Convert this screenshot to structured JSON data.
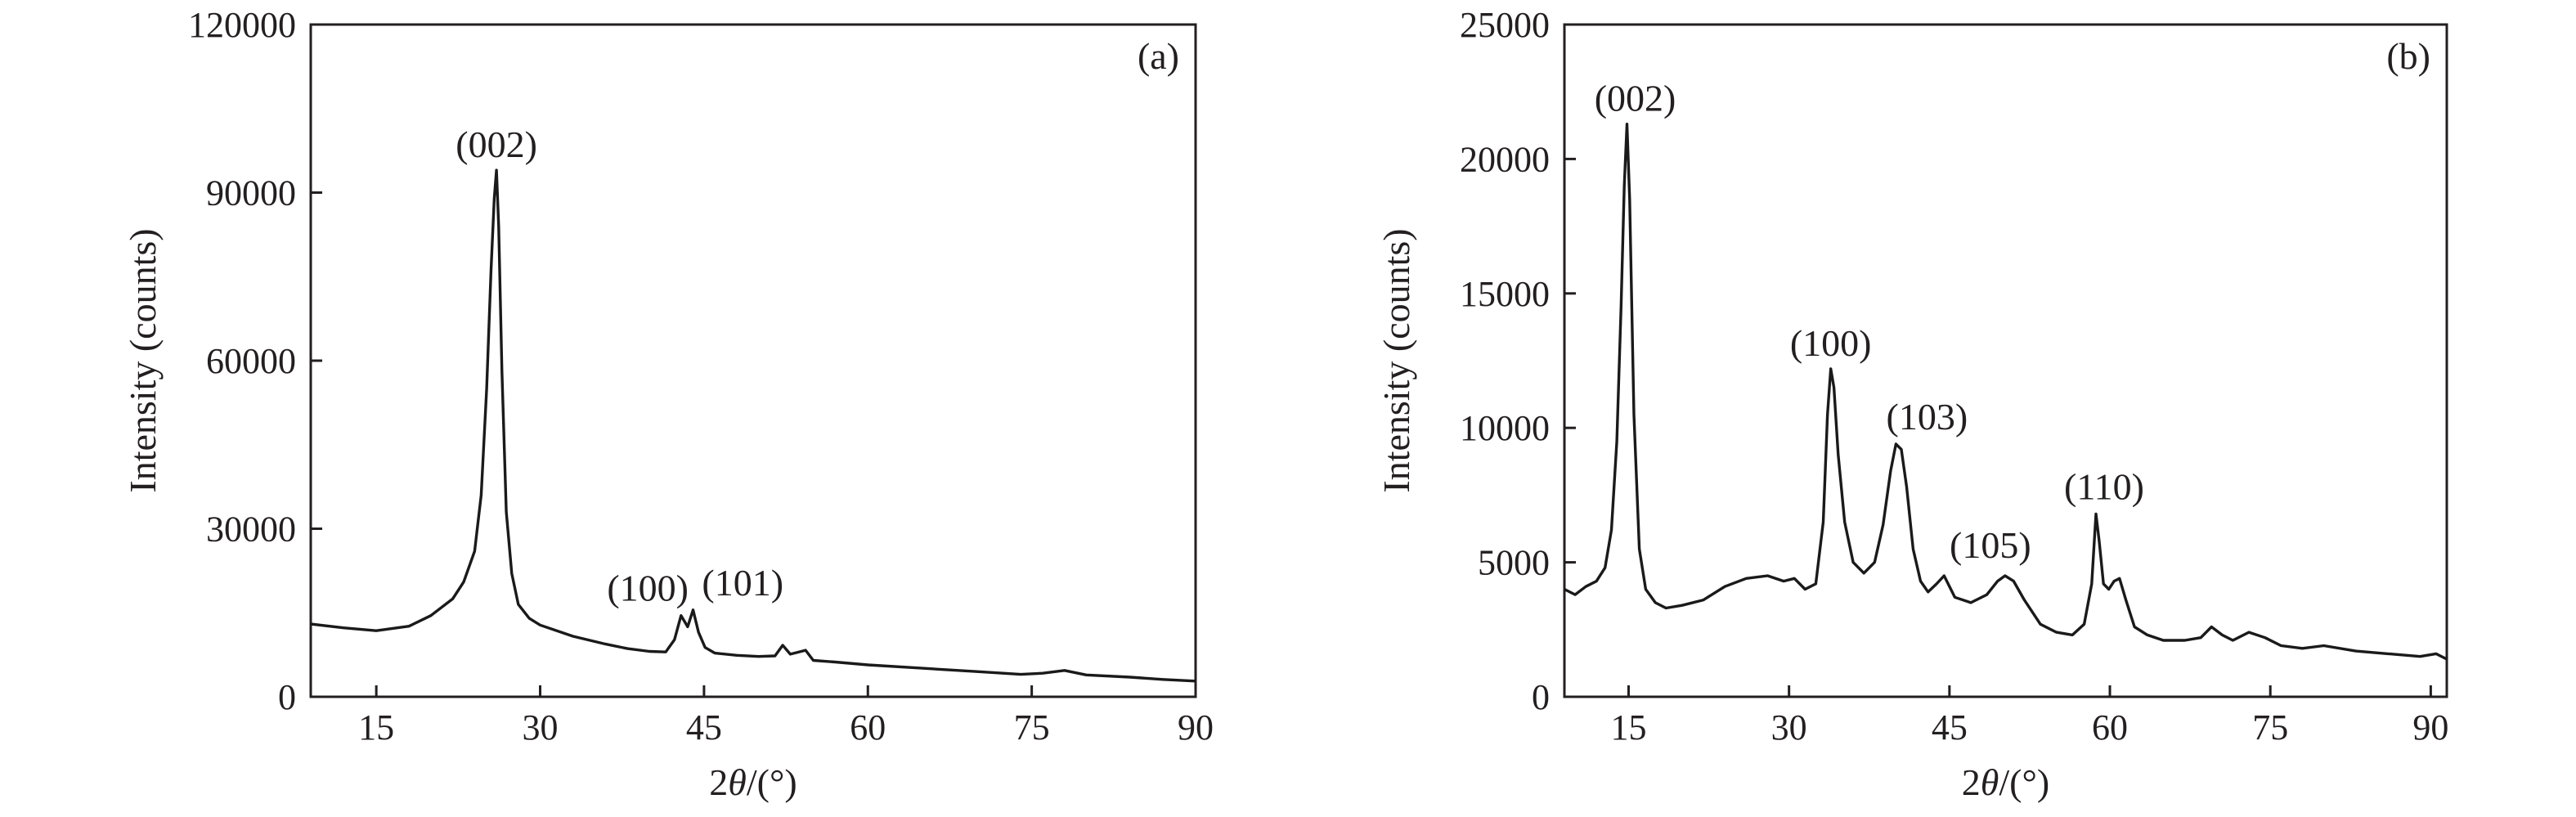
{
  "chart_data": [
    {
      "type": "line",
      "panel_label": "(a)",
      "xlabel_parts": [
        "2",
        "θ",
        "/(°)"
      ],
      "ylabel": "Intensity (counts)",
      "xlim": [
        9,
        90
      ],
      "ylim": [
        0,
        120000
      ],
      "xticks": [
        15,
        30,
        45,
        60,
        75,
        90
      ],
      "yticks": [
        0,
        30000,
        60000,
        90000,
        120000
      ],
      "grid": false,
      "line_color": "#1a1a1a",
      "series": [
        {
          "x": [
            9,
            12,
            15,
            18,
            20,
            22,
            23,
            24,
            24.6,
            25.1,
            25.5,
            25.8,
            26.0,
            26.2,
            26.5,
            26.9,
            27.4,
            28.0,
            29.0,
            30.0,
            33.0,
            36.0,
            38.0,
            40.0,
            41.5,
            42.3,
            42.9,
            43.5,
            44.0,
            44.5,
            45.1,
            46.0,
            48.0,
            50.0,
            51.5,
            52.2,
            52.9,
            53.5,
            54.3,
            55.0,
            57.0,
            60.0,
            65.0,
            70.0,
            74.0,
            76.0,
            78.0,
            80.0,
            84.0,
            87.0,
            90.0
          ],
          "y": [
            13000,
            12300,
            11800,
            12600,
            14500,
            17500,
            20500,
            26000,
            36000,
            55000,
            76000,
            89000,
            94000,
            84000,
            58000,
            33000,
            22000,
            16500,
            14000,
            12800,
            10800,
            9400,
            8600,
            8100,
            8000,
            10200,
            14500,
            12500,
            15500,
            11500,
            8800,
            7800,
            7400,
            7200,
            7300,
            9200,
            7600,
            7900,
            8300,
            6500,
            6200,
            5700,
            5100,
            4500,
            4000,
            4200,
            4700,
            3900,
            3500,
            3100,
            2800
          ]
        }
      ],
      "annotations": [
        {
          "text": "(002)",
          "x": 26.0,
          "y": 94000
        },
        {
          "text": "(100)",
          "x": 43.0,
          "y": 14500
        },
        {
          "text": "(101)",
          "x": 44.5,
          "y": 15500
        }
      ]
    },
    {
      "type": "line",
      "panel_label": "(b)",
      "xlabel_parts": [
        "2",
        "θ",
        "/(°)"
      ],
      "ylabel": "Intensity (counts)",
      "xlim": [
        9,
        91.5
      ],
      "ylim": [
        0,
        25000
      ],
      "xticks": [
        15,
        30,
        45,
        60,
        75,
        90
      ],
      "yticks": [
        0,
        5000,
        10000,
        15000,
        20000,
        25000
      ],
      "grid": false,
      "line_color": "#1a1a1a",
      "series": [
        {
          "x": [
            9,
            10,
            11,
            12,
            12.8,
            13.4,
            13.9,
            14.3,
            14.6,
            14.85,
            15.1,
            15.5,
            16.0,
            16.6,
            17.5,
            18.5,
            20.0,
            22.0,
            24.0,
            26.0,
            28.0,
            29.5,
            30.5,
            31.5,
            32.5,
            33.2,
            33.6,
            33.9,
            34.2,
            34.6,
            35.2,
            36.0,
            37.0,
            38.0,
            38.8,
            39.5,
            40.0,
            40.5,
            41.0,
            41.6,
            42.3,
            43.0,
            43.8,
            44.5,
            45.5,
            47.0,
            48.5,
            49.5,
            50.2,
            51.0,
            52.0,
            53.5,
            55.0,
            56.5,
            57.6,
            58.3,
            58.7,
            59.0,
            59.4,
            59.9,
            60.4,
            60.9,
            61.5,
            62.3,
            63.5,
            65.0,
            67.0,
            68.5,
            69.5,
            70.5,
            71.5,
            73.0,
            74.5,
            76.0,
            78.0,
            80.0,
            83.0,
            86.0,
            89.0,
            90.5,
            91.5
          ],
          "y": [
            4000,
            3800,
            4100,
            4300,
            4800,
            6200,
            9500,
            14500,
            19000,
            21300,
            18500,
            10500,
            5500,
            4000,
            3500,
            3300,
            3400,
            3600,
            4100,
            4400,
            4500,
            4300,
            4400,
            4000,
            4200,
            6500,
            10500,
            12200,
            11500,
            9000,
            6500,
            5000,
            4600,
            5000,
            6400,
            8400,
            9400,
            9200,
            7800,
            5500,
            4300,
            3900,
            4200,
            4500,
            3700,
            3500,
            3800,
            4300,
            4500,
            4300,
            3600,
            2700,
            2400,
            2300,
            2700,
            4200,
            6800,
            5800,
            4200,
            4000,
            4300,
            4400,
            3600,
            2600,
            2300,
            2100,
            2100,
            2200,
            2600,
            2300,
            2100,
            2400,
            2200,
            1900,
            1800,
            1900,
            1700,
            1600,
            1500,
            1600,
            1400
          ]
        }
      ],
      "annotations": [
        {
          "text": "(002)",
          "x": 14.85,
          "y": 21300
        },
        {
          "text": "(100)",
          "x": 33.9,
          "y": 12200
        },
        {
          "text": "(103)",
          "x": 40.3,
          "y": 9400
        },
        {
          "text": "(105)",
          "x": 50.2,
          "y": 4500
        },
        {
          "text": "(110)",
          "x": 58.7,
          "y": 6800
        }
      ]
    }
  ]
}
